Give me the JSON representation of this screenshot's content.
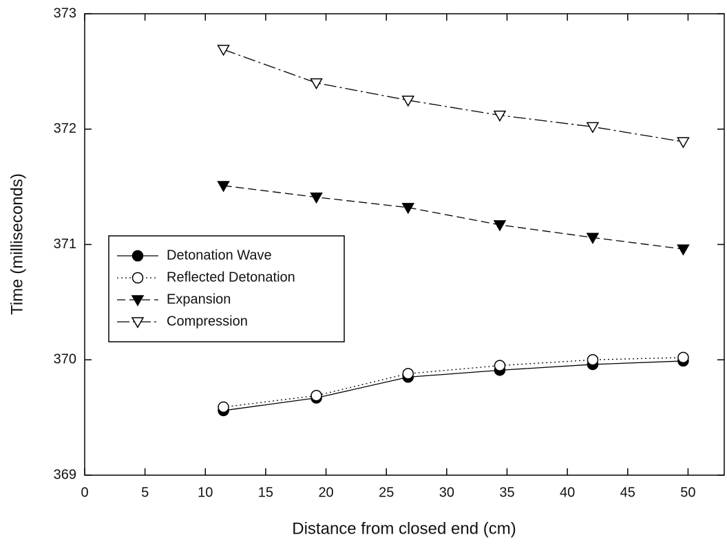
{
  "chart_data": {
    "type": "line",
    "xlabel": "Distance from closed end (cm)",
    "ylabel": "Time (milliseconds)",
    "x": [
      11.5,
      19.2,
      26.8,
      34.4,
      42.1,
      49.6
    ],
    "series": [
      {
        "name": "Detonation Wave",
        "color": "#000000",
        "marker": "circle",
        "filled": true,
        "dash": "solid",
        "values": [
          369.56,
          369.67,
          369.85,
          369.91,
          369.96,
          369.99
        ]
      },
      {
        "name": "Reflected Detonation",
        "color": "#000000",
        "marker": "circle",
        "filled": false,
        "dash": "dotted",
        "values": [
          369.59,
          369.69,
          369.88,
          369.95,
          370.0,
          370.02
        ]
      },
      {
        "name": "Expansion",
        "color": "#000000",
        "marker": "triangle-down",
        "filled": true,
        "dash": "dashed",
        "values": [
          371.51,
          371.41,
          371.32,
          371.17,
          371.06,
          370.96
        ]
      },
      {
        "name": "Compression",
        "color": "#000000",
        "marker": "triangle-down",
        "filled": false,
        "dash": "dashdot",
        "values": [
          372.69,
          372.4,
          372.25,
          372.12,
          372.02,
          371.89
        ]
      }
    ],
    "xlim": [
      0,
      53
    ],
    "xticks": [
      0,
      5,
      10,
      15,
      20,
      25,
      30,
      35,
      40,
      45,
      50
    ],
    "ylim": [
      369,
      373
    ],
    "yticks": [
      369,
      370,
      371,
      372,
      373
    ],
    "grid": false,
    "legend": "left"
  }
}
